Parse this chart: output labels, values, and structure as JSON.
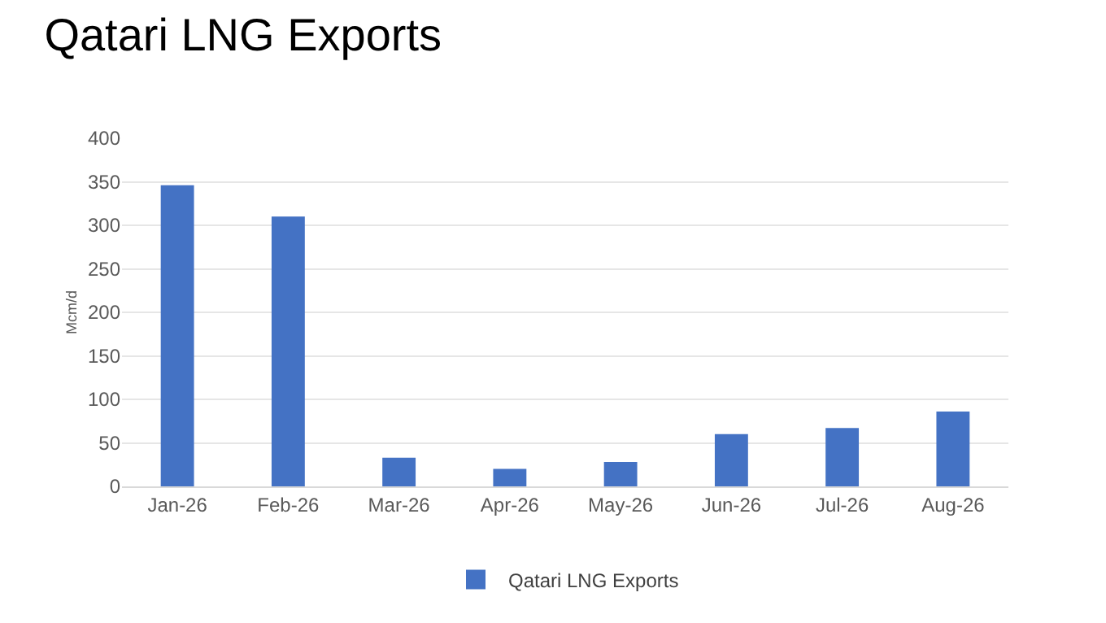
{
  "chart_data": {
    "type": "bar",
    "title": "Qatari LNG Exports",
    "ylabel": "Mcm/d",
    "categories": [
      "Jan-26",
      "Feb-26",
      "Mar-26",
      "Apr-26",
      "May-26",
      "Jun-26",
      "Jul-26",
      "Aug-26"
    ],
    "series": [
      {
        "name": "Qatari LNG Exports",
        "color": "#4472c4",
        "values": [
          346,
          310,
          33,
          20,
          28,
          60,
          67,
          86
        ]
      }
    ],
    "ylim": [
      0,
      400
    ],
    "yticks": [
      0,
      50,
      100,
      150,
      200,
      250,
      300,
      350,
      400
    ],
    "grid": "y",
    "legend": "bottom"
  }
}
